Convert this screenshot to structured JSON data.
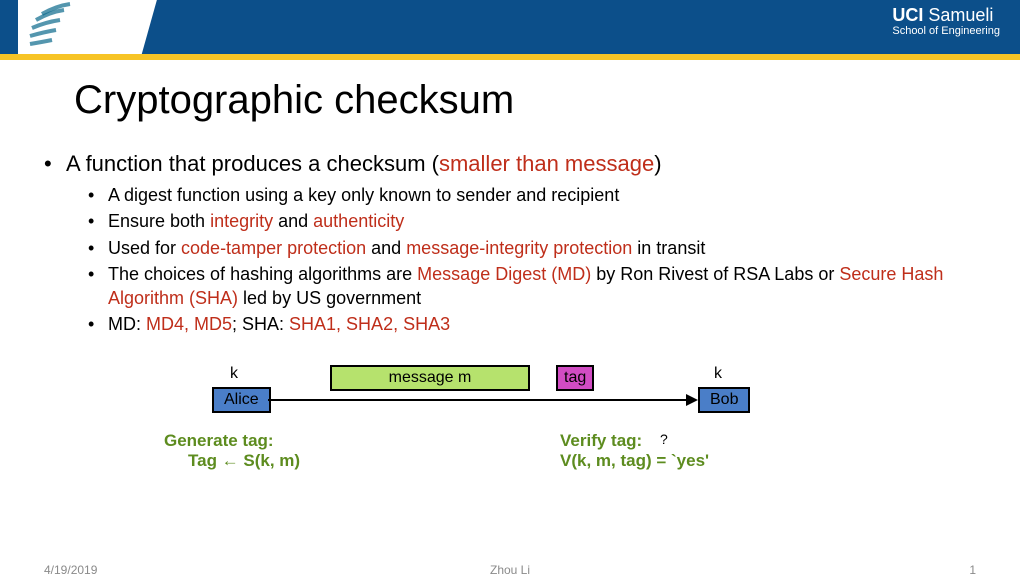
{
  "header": {
    "uni_logo_alt": "UCI",
    "school_top_bold": "UCI",
    "school_top_rest": " Samueli",
    "school_bottom": "School of Engineering",
    "bg_color": "#0c4f8a",
    "accent_color": "#f7c426"
  },
  "title": "Cryptographic checksum",
  "bullet_main_pre": "A function that produces a checksum (",
  "bullet_main_red": "smaller than message",
  "bullet_main_post": ")",
  "sub": [
    {
      "segments": [
        {
          "t": "A digest function using a key only known to sender and recipient"
        }
      ]
    },
    {
      "segments": [
        {
          "t": "Ensure both "
        },
        {
          "t": "integrity",
          "c": "r"
        },
        {
          "t": " and "
        },
        {
          "t": "authenticity",
          "c": "r"
        }
      ]
    },
    {
      "segments": [
        {
          "t": "Used for "
        },
        {
          "t": "code-tamper protection",
          "c": "r"
        },
        {
          "t": " and "
        },
        {
          "t": "message-integrity protection",
          "c": "r"
        },
        {
          "t": " in transit"
        }
      ]
    },
    {
      "segments": [
        {
          "t": "The choices of hashing algorithms are "
        },
        {
          "t": "Message Digest (MD)",
          "c": "r"
        },
        {
          "t": " by Ron Rivest of RSA Labs or "
        },
        {
          "t": "Secure Hash Algorithm (SHA)",
          "c": "r"
        },
        {
          "t": " led by US government"
        }
      ]
    },
    {
      "segments": [
        {
          "t": "MD: "
        },
        {
          "t": "MD4, MD5",
          "c": "r"
        },
        {
          "t": "; SHA: "
        },
        {
          "t": "SHA1, SHA2, SHA3",
          "c": "r"
        }
      ]
    }
  ],
  "diagram": {
    "alice": "Alice",
    "bob": "Bob",
    "k_left": "k",
    "k_right": "k",
    "message": "message   m",
    "tag": "tag",
    "alice_color": "#4a7ec8",
    "bob_color": "#4a7ec8",
    "msg_color": "#b6e26d",
    "tag_color": "#d14cc3",
    "gen_title": "Generate tag:",
    "gen_eq": "Tag ← S(k, m)",
    "ver_title": "Verify tag:",
    "ver_eq": "V(k, m, tag)  =  `yes'",
    "qmark": "?"
  },
  "footer": {
    "date": "4/19/2019",
    "author": "Zhou Li",
    "page": "1"
  }
}
